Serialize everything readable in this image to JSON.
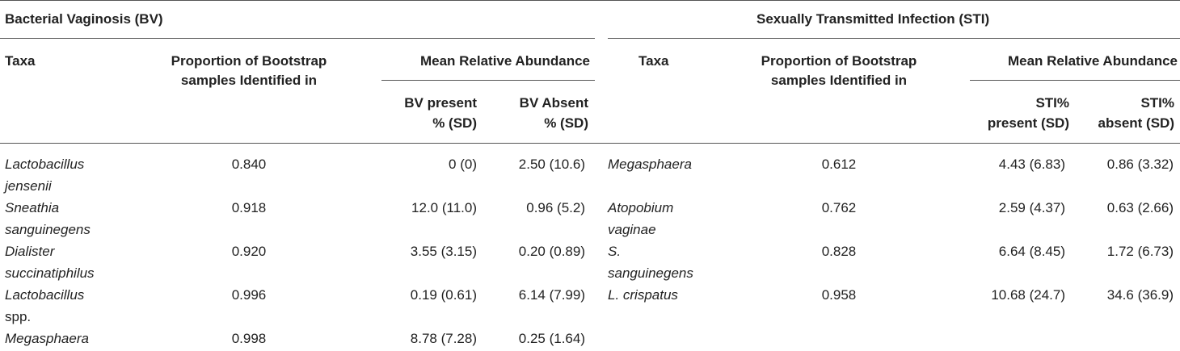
{
  "bv": {
    "title": "Bacterial Vaginosis (BV)",
    "col_taxa": "Taxa",
    "col_prop_1": "Proportion of Bootstrap",
    "col_prop_2": "samples Identified in",
    "col_mean": "Mean Relative Abundance",
    "sub_present_1": "BV present",
    "sub_present_2": "% (SD)",
    "sub_absent_1": "BV Absent",
    "sub_absent_2": "% (SD)",
    "rows": [
      {
        "taxa": [
          "Lactobacillus",
          "jensenii"
        ],
        "taxa_italic": [
          true,
          true
        ],
        "prop": "0.840",
        "present": "0 (0)",
        "absent": "2.50 (10.6)"
      },
      {
        "taxa": [
          "Sneathia",
          "sanguinegens"
        ],
        "taxa_italic": [
          true,
          true
        ],
        "prop": "0.918",
        "present": "12.0 (11.0)",
        "absent": "0.96 (5.2)"
      },
      {
        "taxa": [
          "Dialister",
          "succinatiphilus"
        ],
        "taxa_italic": [
          true,
          true
        ],
        "prop": "0.920",
        "present": "3.55 (3.15)",
        "absent": "0.20 (0.89)"
      },
      {
        "taxa": [
          "Lactobacillus",
          "spp."
        ],
        "taxa_italic": [
          true,
          false
        ],
        "prop": "0.996",
        "present": "0.19 (0.61)",
        "absent": "6.14 (7.99)"
      },
      {
        "taxa": [
          "Megasphaera"
        ],
        "taxa_italic": [
          true
        ],
        "prop": "0.998",
        "present": "8.78 (7.28)",
        "absent": "0.25 (1.64)"
      }
    ]
  },
  "sti": {
    "title": "Sexually Transmitted Infection (STI)",
    "col_taxa": "Taxa",
    "col_prop_1": "Proportion of Bootstrap",
    "col_prop_2": "samples Identified in",
    "col_mean": "Mean Relative Abundance",
    "sub_present_1": "STI%",
    "sub_present_2": "present (SD)",
    "sub_absent_1": "STI%",
    "sub_absent_2": "absent (SD)",
    "rows": [
      {
        "taxa": [
          "Megasphaera"
        ],
        "taxa_italic": [
          true
        ],
        "prop": "0.612",
        "present": "4.43 (6.83)",
        "absent": "0.86 (3.32)"
      },
      {
        "taxa": [
          "Atopobium",
          "vaginae"
        ],
        "taxa_italic": [
          true,
          true
        ],
        "prop": "0.762",
        "present": "2.59 (4.37)",
        "absent": "0.63 (2.66)"
      },
      {
        "taxa": [
          "S.",
          "sanguinegens"
        ],
        "taxa_italic": [
          true,
          true
        ],
        "prop": "0.828",
        "present": "6.64 (8.45)",
        "absent": "1.72 (6.73)"
      },
      {
        "taxa": [
          "L. crispatus"
        ],
        "taxa_italic": [
          true
        ],
        "prop": "0.958",
        "present": "10.68 (24.7)",
        "absent": "34.6 (36.9)"
      }
    ]
  }
}
